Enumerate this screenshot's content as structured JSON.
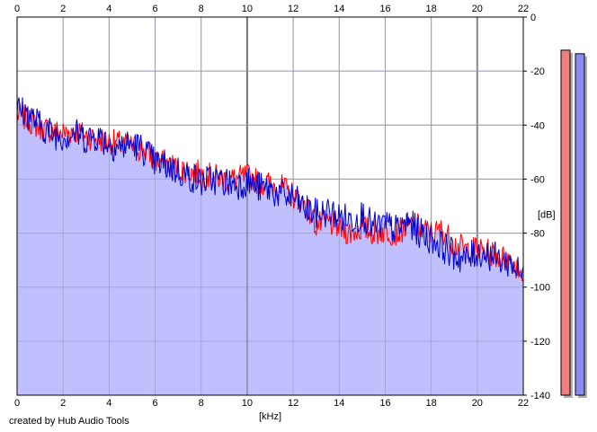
{
  "chart_data": {
    "type": "area",
    "xlabel": "[kHz]",
    "ylabel": "[dB]",
    "xlim": [
      0,
      22
    ],
    "ylim": [
      -140,
      0
    ],
    "x_ticks": [
      "0",
      "2",
      "4",
      "6",
      "8",
      "10",
      "12",
      "14",
      "16",
      "18",
      "20",
      "22"
    ],
    "y_ticks": [
      "0",
      "-20",
      "-40",
      "-60",
      "-80",
      "-100",
      "-120",
      "-140"
    ],
    "grid": true,
    "colors": {
      "left": "#ff0000",
      "right": "#0000cc",
      "fill": "#c0c0ff"
    },
    "series": [
      {
        "channel": "left",
        "color": "#ff0000",
        "x": [
          0,
          0.5,
          1,
          1.5,
          2,
          2.5,
          3,
          3.5,
          4,
          4.5,
          5,
          5.5,
          6,
          6.5,
          7,
          7.5,
          8,
          8.5,
          9,
          9.5,
          10,
          10.5,
          11,
          11.5,
          12,
          12.5,
          13,
          13.5,
          14,
          14.5,
          15,
          15.5,
          16,
          16.5,
          17,
          17.5,
          18,
          18.5,
          19,
          19.5,
          20,
          20.5,
          21,
          21.5,
          22
        ],
        "y": [
          -36,
          -38,
          -41,
          -42,
          -43,
          -42,
          -44,
          -45,
          -46,
          -47,
          -48,
          -49,
          -53,
          -54,
          -56,
          -57,
          -58,
          -59,
          -60,
          -60,
          -59,
          -61,
          -62,
          -63,
          -66,
          -69,
          -77,
          -76,
          -78,
          -80,
          -78,
          -80,
          -79,
          -80,
          -77,
          -78,
          -80,
          -79,
          -84,
          -86,
          -86,
          -87,
          -89,
          -90,
          -95
        ]
      },
      {
        "channel": "right",
        "color": "#0000cc",
        "x": [
          0,
          0.5,
          1,
          1.5,
          2,
          2.5,
          3,
          3.5,
          4,
          4.5,
          5,
          5.5,
          6,
          6.5,
          7,
          7.5,
          8,
          8.5,
          9,
          9.5,
          10,
          10.5,
          11,
          11.5,
          12,
          12.5,
          13,
          13.5,
          14,
          14.5,
          15,
          15.5,
          16,
          16.5,
          17,
          17.5,
          18,
          18.5,
          19,
          19.5,
          20,
          20.5,
          21,
          21.5,
          22
        ],
        "y": [
          -34,
          -36,
          -40,
          -43,
          -44,
          -43,
          -45,
          -44,
          -47,
          -48,
          -47,
          -49,
          -54,
          -55,
          -57,
          -59,
          -61,
          -60,
          -61,
          -62,
          -61,
          -63,
          -64,
          -66,
          -67,
          -71,
          -73,
          -72,
          -74,
          -75,
          -73,
          -78,
          -77,
          -79,
          -76,
          -80,
          -82,
          -85,
          -88,
          -90,
          -87,
          -88,
          -90,
          -91,
          -97
        ]
      }
    ],
    "level_meters": {
      "left": 0.97,
      "right": 0.96
    }
  },
  "footer": {
    "credit": "created by Hub Audio Tools"
  }
}
